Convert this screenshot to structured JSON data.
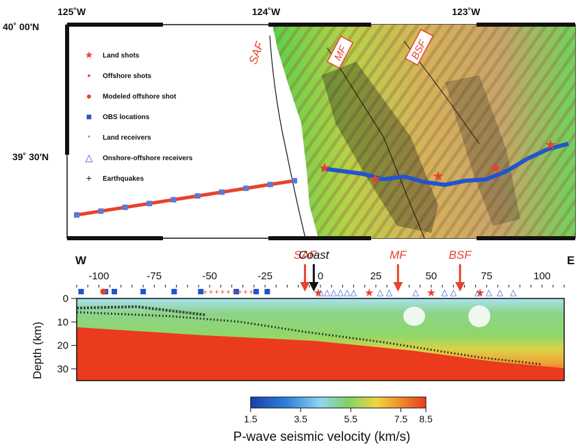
{
  "map": {
    "longitudes": [
      "125˚W",
      "124˚W",
      "123˚W"
    ],
    "latitudes": [
      "40˚ 00'N",
      "39˚ 30'N"
    ],
    "fault_labels": [
      "SAF",
      "MF",
      "BSF"
    ],
    "legend": [
      {
        "label": "Land shots",
        "symbol": "star",
        "color": "#e8422c"
      },
      {
        "label": "Offshore shots",
        "symbol": "small-dot",
        "color": "#e8422c"
      },
      {
        "label": "Modeled offshore shot",
        "symbol": "circle",
        "color": "#e8422c"
      },
      {
        "label": "OBS locations",
        "symbol": "square",
        "color": "#2255cc"
      },
      {
        "label": "Land receivers",
        "symbol": "tiny-dot",
        "color": "#2255cc"
      },
      {
        "label": "Onshore-offshore receivers",
        "symbol": "triangle",
        "color": "#2255cc"
      },
      {
        "label": "Earthquakes",
        "symbol": "plus",
        "color": "#111111"
      }
    ]
  },
  "section": {
    "west_label": "W",
    "east_label": "E",
    "distance_ticks": [
      "-100",
      "-75",
      "-50",
      "-25",
      "0",
      "25",
      "50",
      "75",
      "100"
    ],
    "ylabel": "Depth (km)",
    "depth_ticks": [
      "0",
      "10",
      "20",
      "30"
    ],
    "markers": [
      {
        "label": "SAF",
        "color": "#e8422c",
        "distance": -7
      },
      {
        "label": "Coast",
        "color": "#111111",
        "distance": -3
      },
      {
        "label": "MF",
        "color": "#e8422c",
        "distance": 35
      },
      {
        "label": "BSF",
        "color": "#e8422c",
        "distance": 63
      }
    ]
  },
  "colorbar": {
    "ticks": [
      "1.5",
      "3.5",
      "5.5",
      "7.5",
      "8.5"
    ],
    "title": "P-wave seismic velocity (km/s)",
    "colors": [
      "#1c3fa8",
      "#2a7fd9",
      "#8fd6f0",
      "#7fd36a",
      "#f0d540",
      "#f08a2a",
      "#ea3b1e"
    ]
  }
}
